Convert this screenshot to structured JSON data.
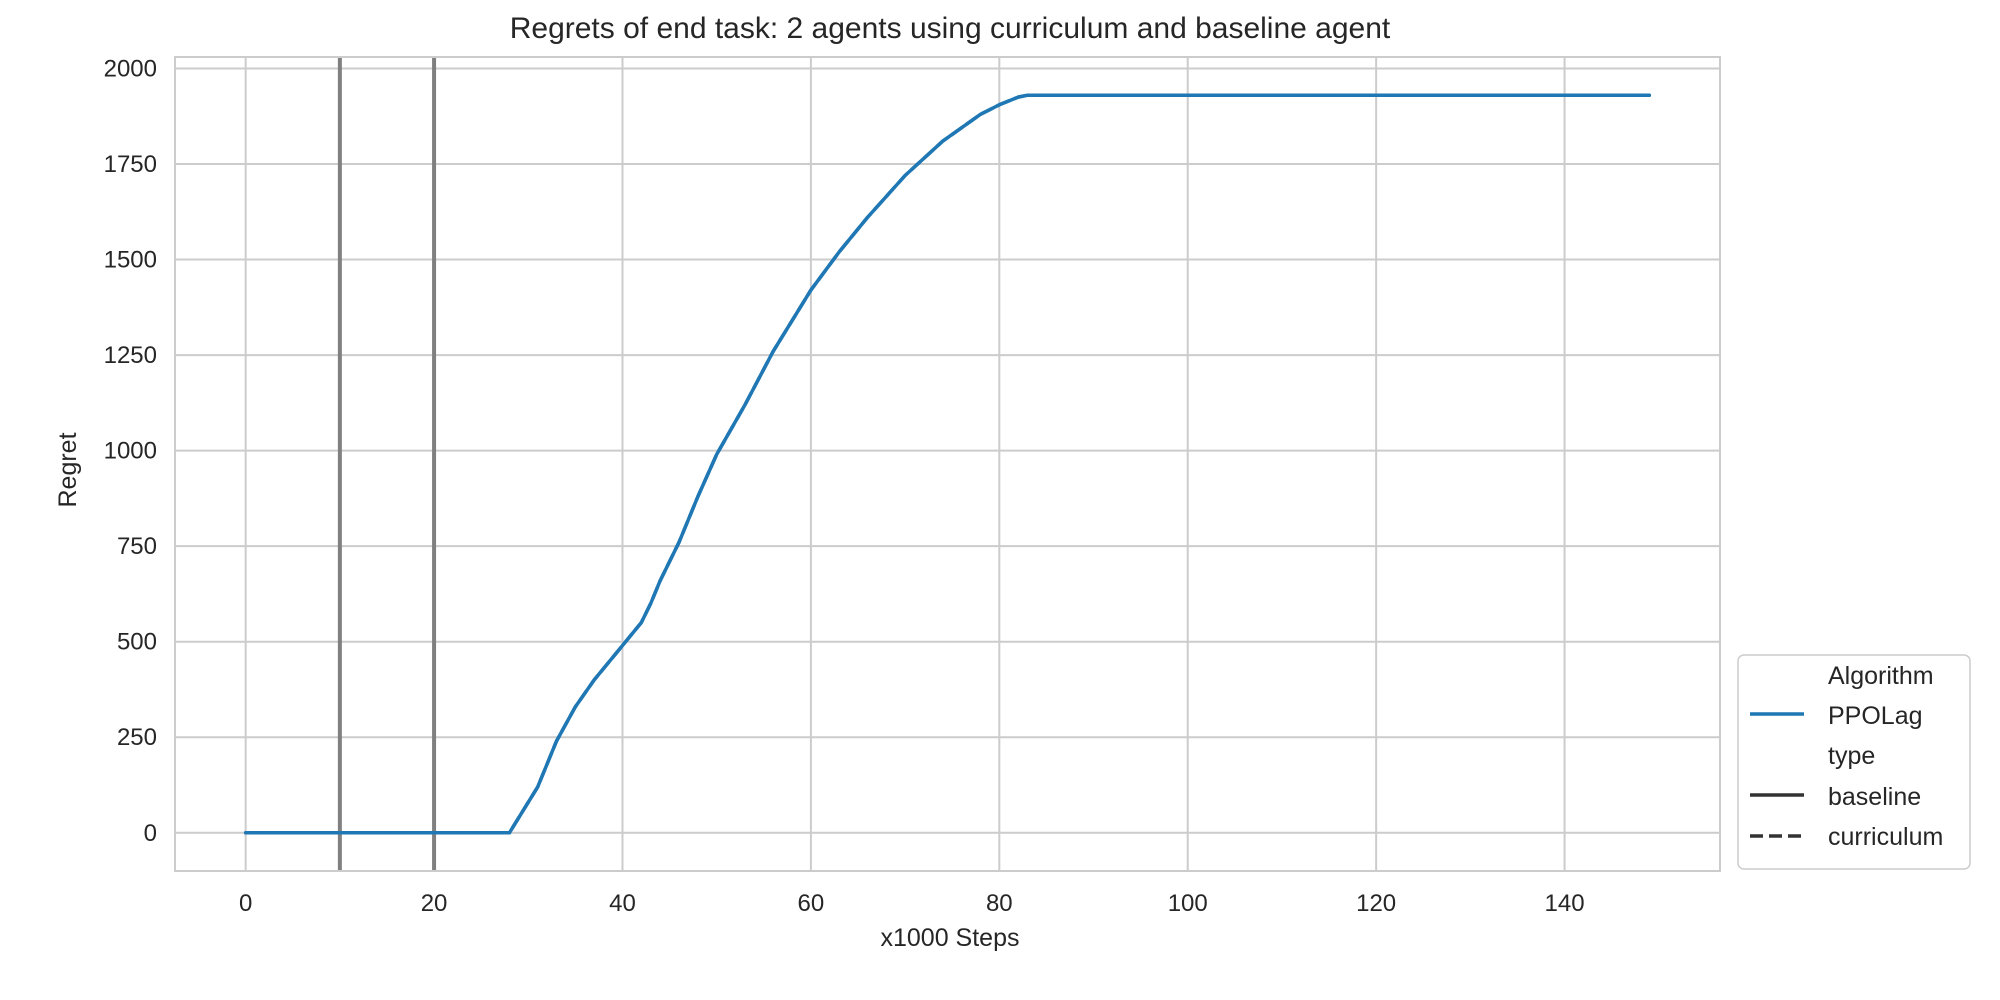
{
  "chart_data": {
    "type": "line",
    "title": "Regrets of end task: 2 agents using curriculum and baseline agent",
    "xlabel": "x1000 Steps",
    "ylabel": "Regret",
    "xlim": [
      -7.5,
      156.5
    ],
    "ylim": [
      -100,
      2030
    ],
    "xticks": [
      0,
      20,
      40,
      60,
      80,
      100,
      120,
      140
    ],
    "yticks": [
      0,
      250,
      500,
      750,
      1000,
      1250,
      1500,
      1750,
      2000
    ],
    "grid": true,
    "vlines": [
      10,
      20
    ],
    "legend_position": "right",
    "legend": {
      "groups": [
        {
          "title": "Algorithm",
          "entries": [
            {
              "label": "PPOLag",
              "color": "#1f77b4",
              "style": "solid"
            }
          ]
        },
        {
          "title": "type",
          "entries": [
            {
              "label": "baseline",
              "color": "#333333",
              "style": "solid"
            },
            {
              "label": "curriculum",
              "color": "#333333",
              "style": "dashed"
            }
          ]
        }
      ]
    },
    "series": [
      {
        "algorithm": "PPOLag",
        "type": "baseline",
        "color": "#1f77b4",
        "style": "solid",
        "x": [
          0,
          10,
          20,
          28,
          31,
          33,
          35,
          37,
          40,
          42,
          43,
          44,
          46,
          48,
          50,
          53,
          56,
          60,
          63,
          66,
          70,
          74,
          78,
          80,
          82,
          83,
          90,
          100,
          110,
          120,
          130,
          140,
          149
        ],
        "y": [
          0,
          0,
          0,
          0,
          120,
          240,
          330,
          400,
          490,
          550,
          600,
          660,
          760,
          880,
          990,
          1120,
          1260,
          1420,
          1520,
          1610,
          1720,
          1810,
          1880,
          1905,
          1925,
          1930,
          1930,
          1930,
          1930,
          1930,
          1930,
          1930,
          1930
        ]
      },
      {
        "algorithm": "PPOLag",
        "type": "curriculum",
        "color": "#1f77b4",
        "style": "dashed",
        "x": [
          0,
          10,
          20,
          28,
          31,
          33,
          35,
          37,
          40,
          42,
          43,
          44,
          46,
          48,
          50,
          53,
          56,
          60,
          63,
          66,
          70,
          74,
          78,
          80,
          82,
          83,
          90,
          100,
          110,
          120,
          130,
          140,
          149
        ],
        "y": [
          0,
          0,
          0,
          0,
          120,
          240,
          330,
          400,
          490,
          550,
          600,
          660,
          760,
          880,
          990,
          1120,
          1260,
          1420,
          1520,
          1610,
          1720,
          1810,
          1880,
          1905,
          1925,
          1930,
          1930,
          1930,
          1930,
          1930,
          1930,
          1930,
          1930
        ]
      }
    ]
  }
}
